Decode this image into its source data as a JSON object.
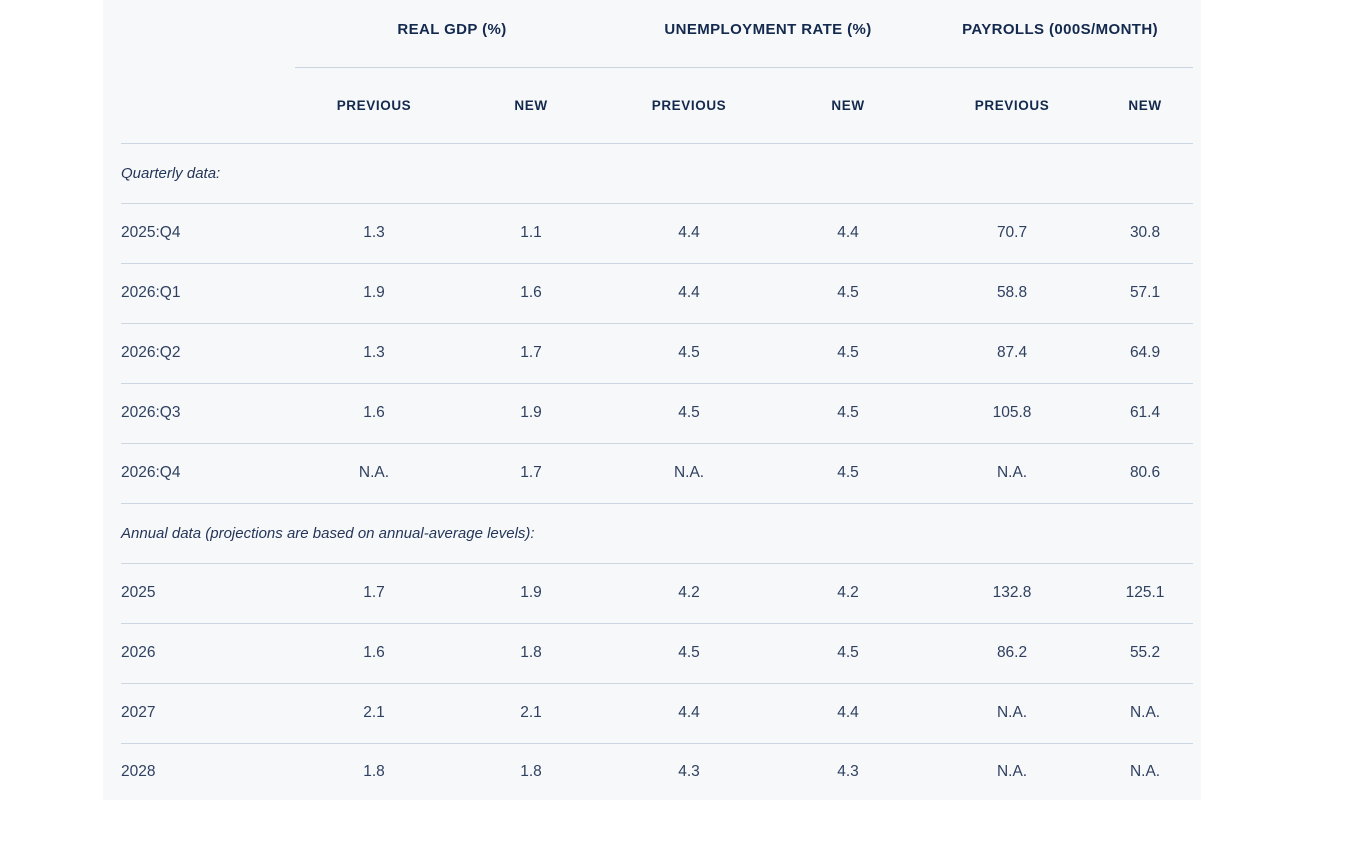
{
  "colors": {
    "panel_background": "#f7f8f9",
    "page_background": "#ffffff",
    "header_text": "#13294e",
    "body_text": "#2f4060",
    "divider": "#ccd6e0"
  },
  "table": {
    "column_groups": [
      {
        "label": "REAL GDP (%)"
      },
      {
        "label": "UNEMPLOYMENT RATE (%)"
      },
      {
        "label": "PAYROLLS (000S/MONTH)"
      }
    ],
    "subheaders": [
      "PREVIOUS",
      "NEW",
      "PREVIOUS",
      "NEW",
      "PREVIOUS",
      "NEW"
    ],
    "sections": [
      {
        "title": "Quarterly data:",
        "rows": [
          {
            "label": "2025:Q4",
            "values": [
              "1.3",
              "1.1",
              "4.4",
              "4.4",
              "70.7",
              "30.8"
            ]
          },
          {
            "label": "2026:Q1",
            "values": [
              "1.9",
              "1.6",
              "4.4",
              "4.5",
              "58.8",
              "57.1"
            ]
          },
          {
            "label": "2026:Q2",
            "values": [
              "1.3",
              "1.7",
              "4.5",
              "4.5",
              "87.4",
              "64.9"
            ]
          },
          {
            "label": "2026:Q3",
            "values": [
              "1.6",
              "1.9",
              "4.5",
              "4.5",
              "105.8",
              "61.4"
            ]
          },
          {
            "label": "2026:Q4",
            "values": [
              "N.A.",
              "1.7",
              "N.A.",
              "4.5",
              "N.A.",
              "80.6"
            ]
          }
        ]
      },
      {
        "title": "Annual data (projections are based on annual-average levels):",
        "rows": [
          {
            "label": "2025",
            "values": [
              "1.7",
              "1.9",
              "4.2",
              "4.2",
              "132.8",
              "125.1"
            ]
          },
          {
            "label": "2026",
            "values": [
              "1.6",
              "1.8",
              "4.5",
              "4.5",
              "86.2",
              "55.2"
            ]
          },
          {
            "label": "2027",
            "values": [
              "2.1",
              "2.1",
              "4.4",
              "4.4",
              "N.A.",
              "N.A."
            ]
          },
          {
            "label": "2028",
            "values": [
              "1.8",
              "1.8",
              "4.3",
              "4.3",
              "N.A.",
              "N.A."
            ]
          }
        ]
      }
    ]
  }
}
